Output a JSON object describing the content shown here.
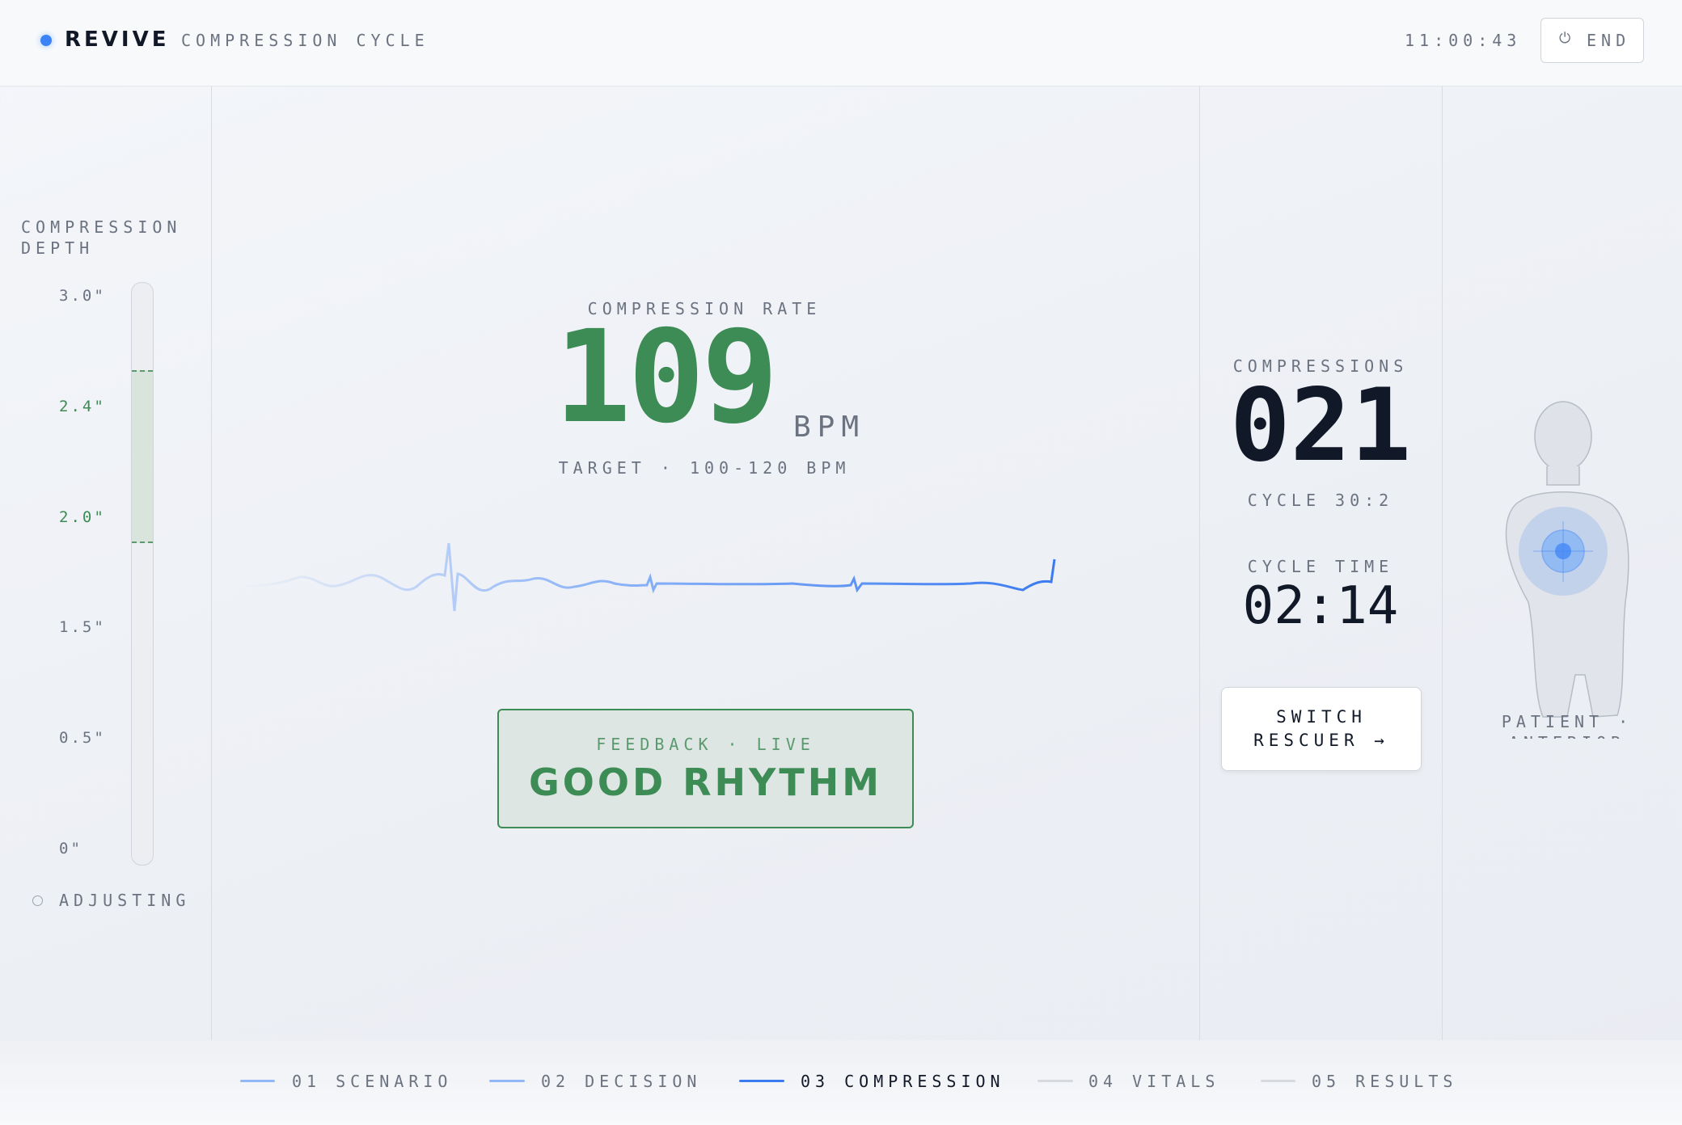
{
  "header": {
    "brand": "REVIVE",
    "section": "COMPRESSION CYCLE",
    "time": "11:00:43",
    "end_button": "END"
  },
  "depth": {
    "label": "COMPRESSION DEPTH",
    "ticks": [
      "3.0\"",
      "2.4\"",
      "2.0\"",
      "1.5\"",
      "0.5\"",
      "0\""
    ],
    "status": "ADJUSTING"
  },
  "rate": {
    "label": "COMPRESSION RATE",
    "value": "109",
    "unit": "BPM",
    "target": "TARGET · 100-120 BPM"
  },
  "feedback": {
    "label": "FEEDBACK · LIVE",
    "message": "GOOD RHYTHM"
  },
  "counter": {
    "label": "COMPRESSIONS",
    "value": "021",
    "cycle": "CYCLE 30:2"
  },
  "cycle_time": {
    "label": "CYCLE TIME",
    "value": "02:14"
  },
  "switch_button": {
    "line1": "SWITCH",
    "line2": "RESCUER →"
  },
  "patient": {
    "caption": "PATIENT · ANTERIOR VIEW"
  },
  "nav": [
    {
      "number": "01",
      "label": "SCENARIO"
    },
    {
      "number": "02",
      "label": "DECISION"
    },
    {
      "number": "03",
      "label": "COMPRESSION"
    },
    {
      "number": "04",
      "label": "VITALS"
    },
    {
      "number": "05",
      "label": "RESULTS"
    }
  ]
}
